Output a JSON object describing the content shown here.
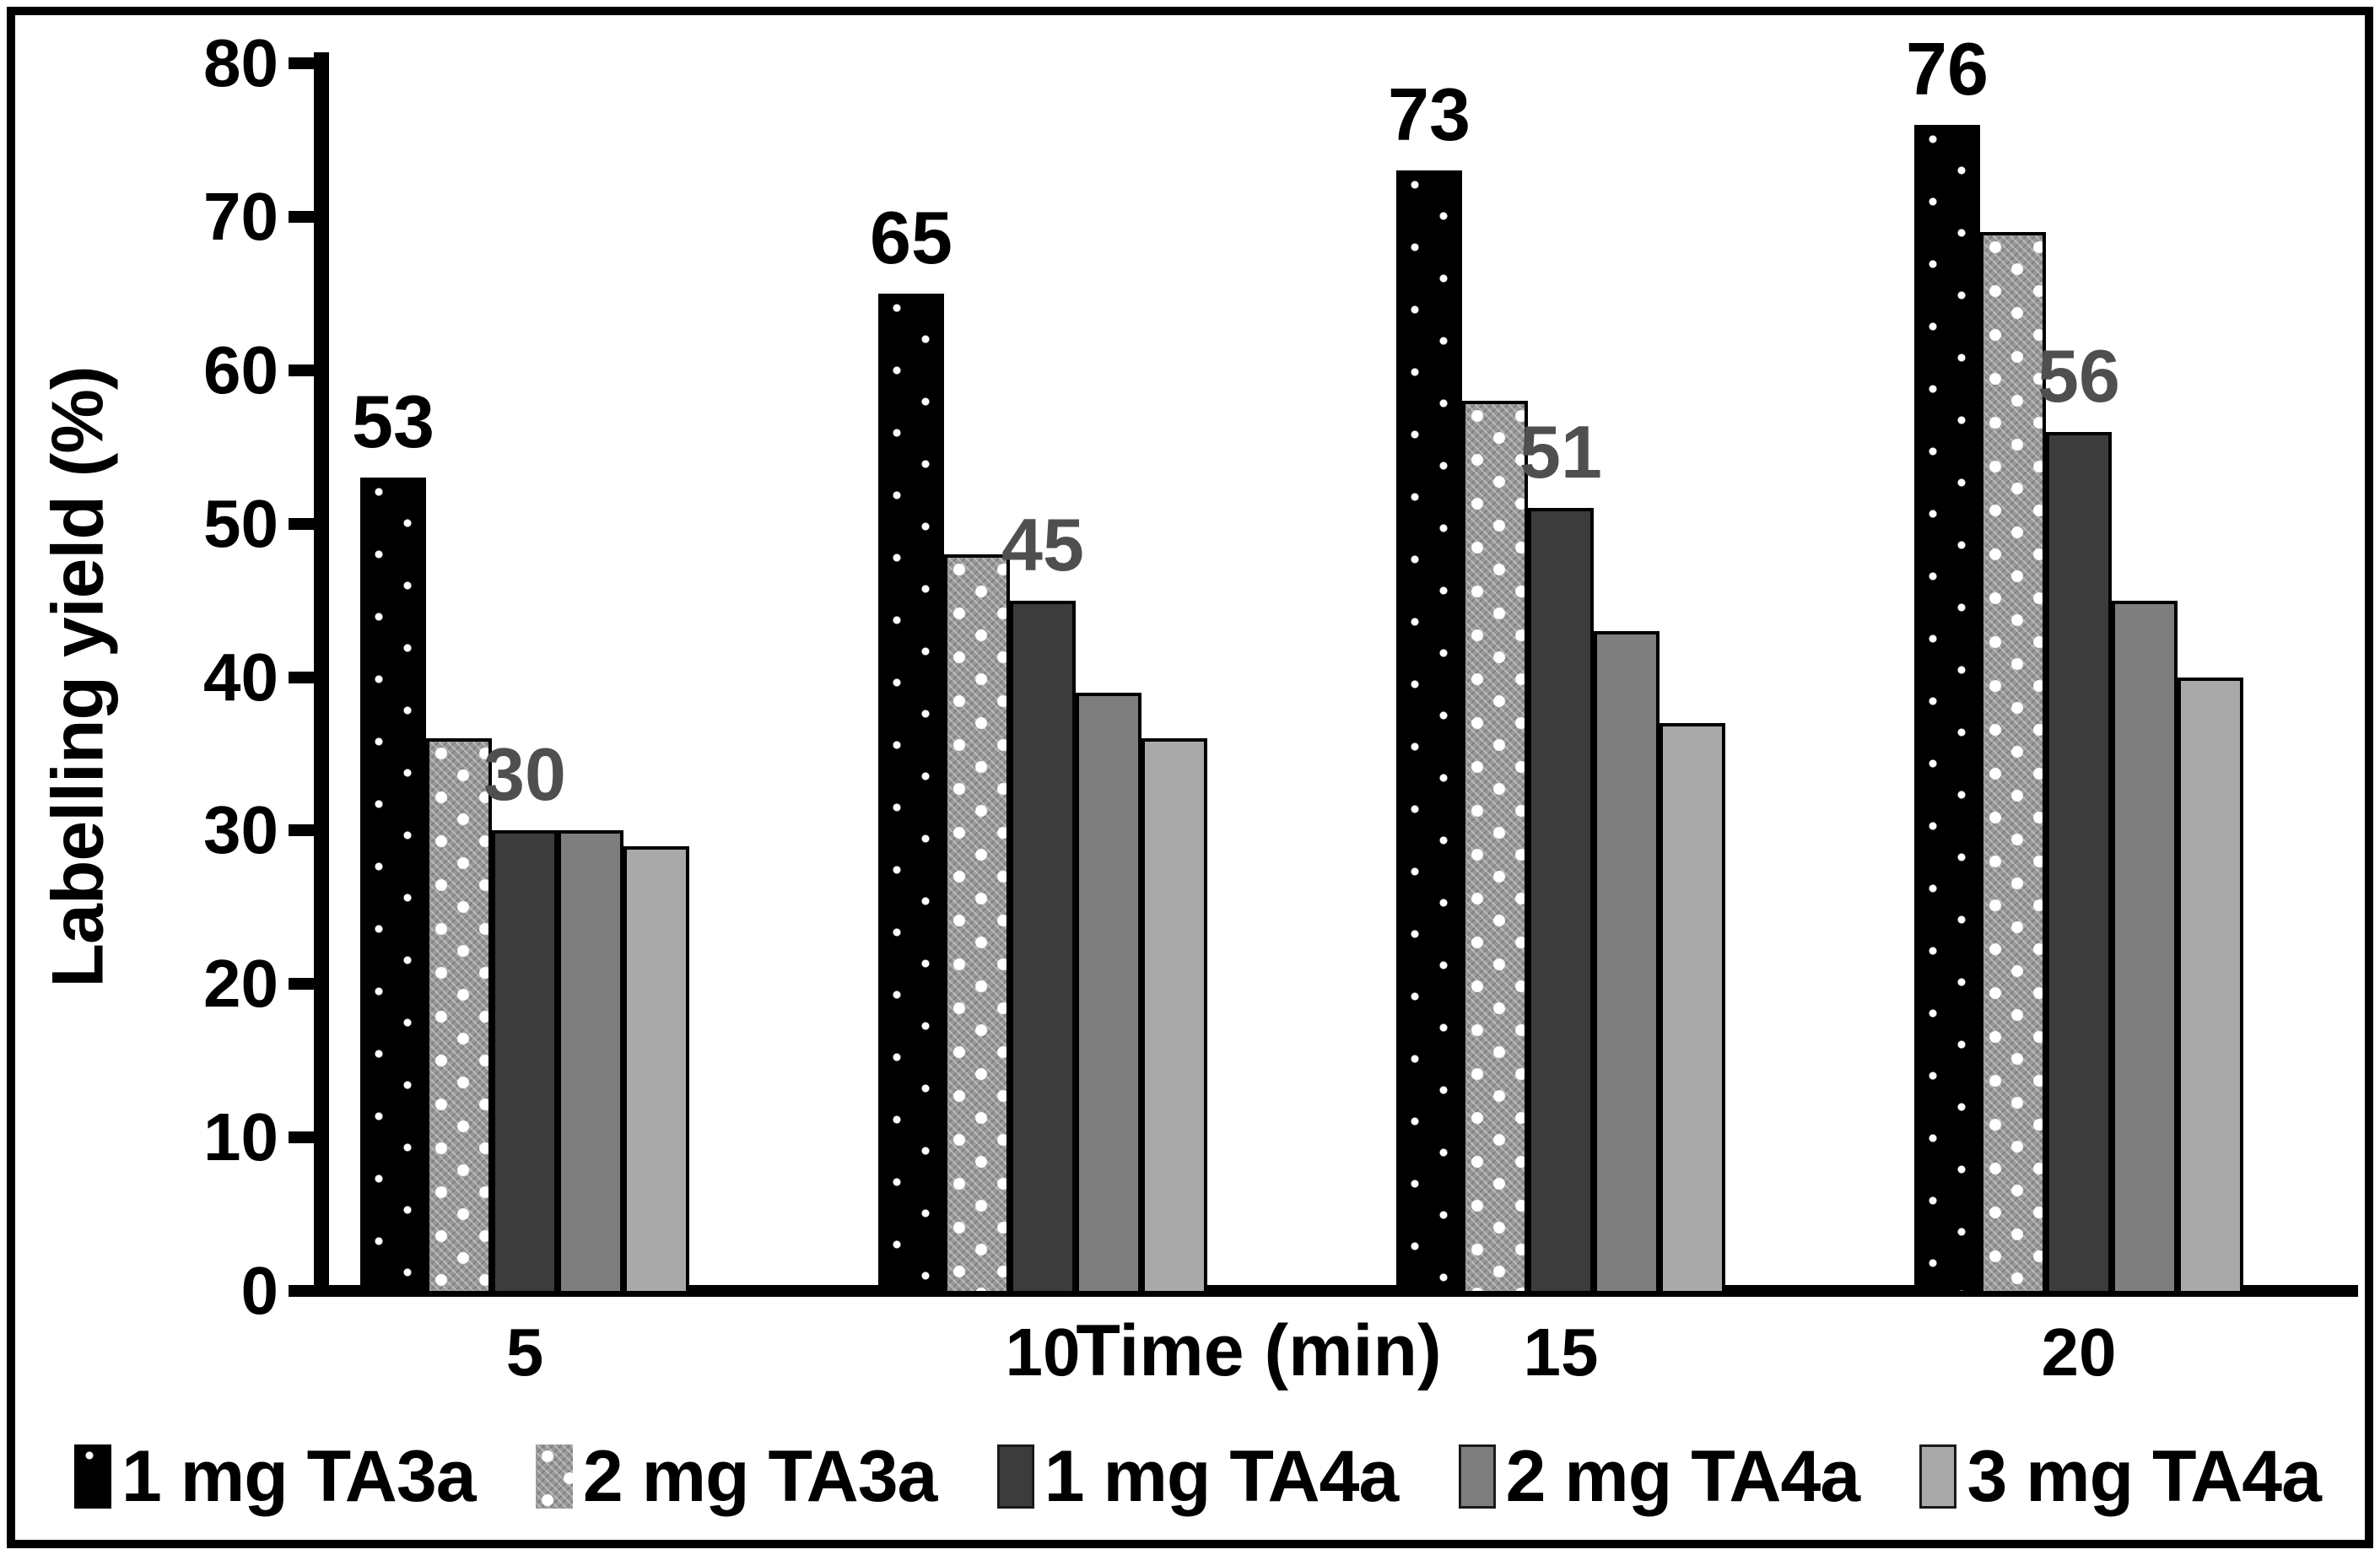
{
  "chart_data": {
    "type": "bar",
    "title": "",
    "categories": [
      "5",
      "10",
      "15",
      "20"
    ],
    "x_axis_title": "Time (min)",
    "y_axis_title": "Labelling yield (%)",
    "ylim": [
      0,
      80
    ],
    "y_ticks": [
      0,
      10,
      20,
      30,
      40,
      50,
      60,
      70,
      80
    ],
    "grid": false,
    "legend_position": "bottom",
    "series": [
      {
        "name": "1 mg TA3a",
        "values": [
          53,
          65,
          73,
          76
        ],
        "data_labels": [
          "53",
          "65",
          "73",
          "76"
        ],
        "label_color": "#000000",
        "pattern": "black-dots",
        "fill": "#000000"
      },
      {
        "name": "2 mg TA3a",
        "values": [
          36,
          48,
          58,
          69
        ],
        "data_labels": null,
        "pattern": "gray-dots",
        "fill": "#989898"
      },
      {
        "name": "1 mg TA4a",
        "values": [
          30,
          45,
          51,
          56
        ],
        "data_labels": [
          "30",
          "45",
          "51",
          "56"
        ],
        "label_color": "#4f4f4f",
        "pattern": null,
        "fill": "#3c3c3c"
      },
      {
        "name": "2 mg TA4a",
        "values": [
          30,
          39,
          43,
          45
        ],
        "data_labels": null,
        "pattern": null,
        "fill": "#7e7e7e"
      },
      {
        "name": "3 mg TA4a",
        "values": [
          29,
          36,
          37,
          40
        ],
        "data_labels": null,
        "pattern": null,
        "fill": "#a9a9a9"
      }
    ]
  },
  "colors": {
    "background": "#ffffff",
    "frame_border": "#000000",
    "axis": "#000000",
    "secondary_label": "#4f4f4f"
  }
}
